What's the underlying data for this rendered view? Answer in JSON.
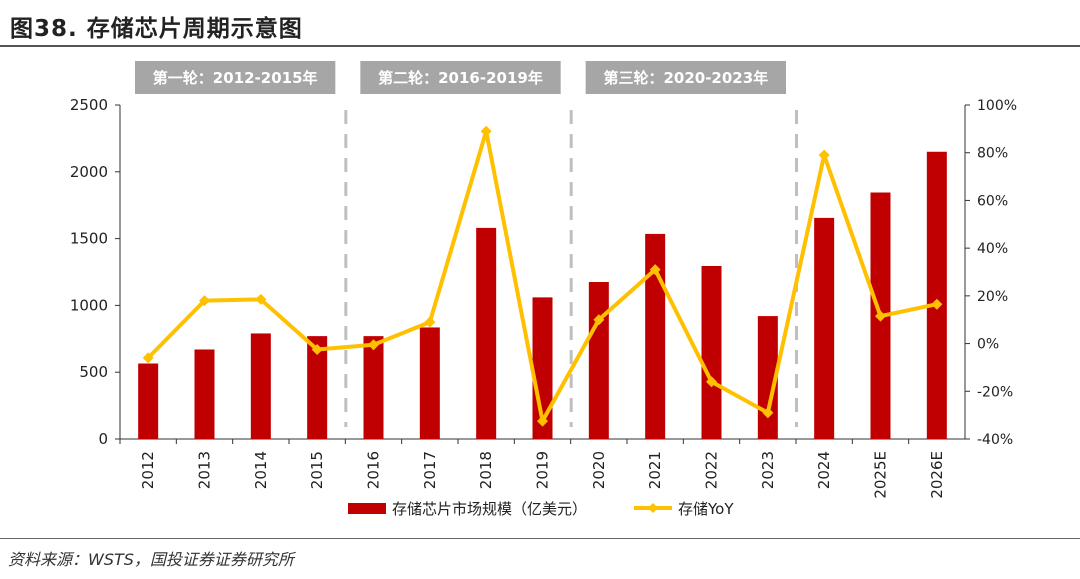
{
  "figure_title": "图38. 存储芯片周期示意图",
  "source": "资料来源：WSTS，国投证券证券研究所",
  "cycles": [
    {
      "label": "第一轮：2012-2015年",
      "from": "2012",
      "to": "2015"
    },
    {
      "label": "第二轮：2016-2019年",
      "from": "2016",
      "to": "2019"
    },
    {
      "label": "第三轮：2020-2023年",
      "from": "2020",
      "to": "2023"
    }
  ],
  "colors": {
    "bar": "#c00000",
    "line": "#ffc000",
    "cycle_box": "#a6a6a6",
    "divider": "#bfbfbf"
  },
  "chart_data": {
    "type": "bar",
    "categories": [
      "2012",
      "2013",
      "2014",
      "2015",
      "2016",
      "2017",
      "2018",
      "2019",
      "2020",
      "2021",
      "2022",
      "2023",
      "2024",
      "2025E",
      "2026E"
    ],
    "series": [
      {
        "name": "存储芯片市场规模（亿美元）",
        "type": "bar",
        "axis": "left",
        "values": [
          565,
          670,
          790,
          770,
          770,
          835,
          1580,
          1060,
          1175,
          1535,
          1295,
          920,
          1655,
          1845,
          2150
        ]
      },
      {
        "name": "存储YoY",
        "type": "line",
        "axis": "right",
        "values": [
          -6,
          18,
          18.5,
          -2.5,
          -0.5,
          9,
          89,
          -32.5,
          10,
          31,
          -16,
          -29,
          79,
          11.5,
          16.5
        ]
      }
    ],
    "ylim": [
      0,
      2500
    ],
    "yticks": [
      0,
      500,
      1000,
      1500,
      2000,
      2500
    ],
    "y2lim": [
      -40,
      100
    ],
    "y2ticks": [
      "-40%",
      "-20%",
      "0%",
      "20%",
      "40%",
      "60%",
      "80%",
      "100%"
    ],
    "legend": "bottom",
    "grid": false
  }
}
